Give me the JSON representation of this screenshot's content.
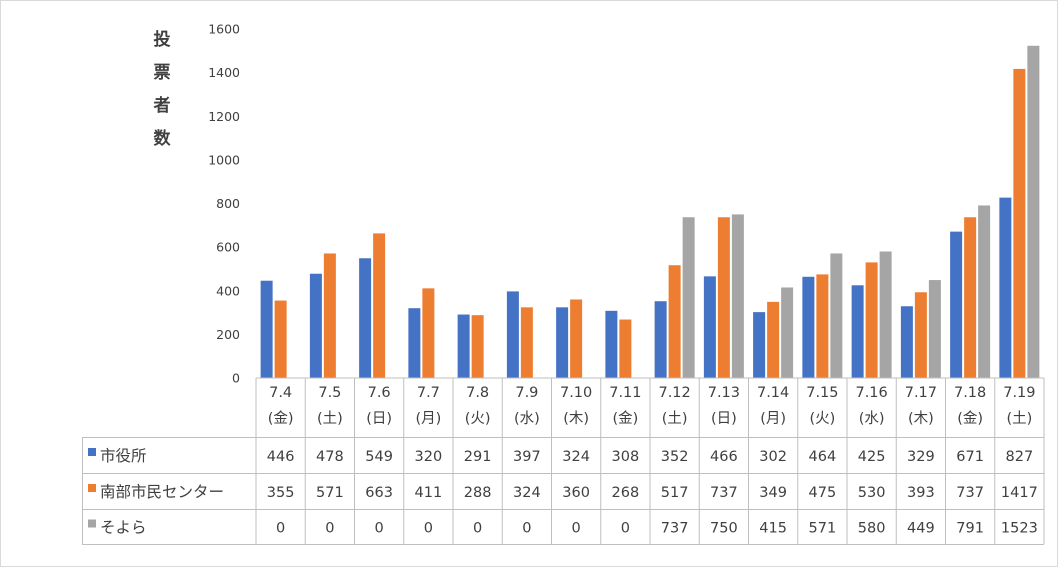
{
  "chart_data": {
    "type": "bar",
    "ylabel": "投票者数",
    "ylabel_chars": [
      "投",
      "票",
      "者",
      "数"
    ],
    "ylim": [
      0,
      1600
    ],
    "yticks": [
      0,
      200,
      400,
      600,
      800,
      1000,
      1200,
      1400,
      1600
    ],
    "grid": false,
    "legend": "table-bottom",
    "categories": [
      "7.4",
      "7.5",
      "7.6",
      "7.7",
      "7.8",
      "7.9",
      "7.10",
      "7.11",
      "7.12",
      "7.13",
      "7.14",
      "7.15",
      "7.16",
      "7.17",
      "7.18",
      "7.19"
    ],
    "weekdays": [
      "(金)",
      "(土)",
      "(日)",
      "(月)",
      "(火)",
      "(水)",
      "(木)",
      "(金)",
      "(土)",
      "(日)",
      "(月)",
      "(火)",
      "(水)",
      "(木)",
      "(金)",
      "(土)"
    ],
    "series": [
      {
        "name": "市役所",
        "color": "#4472C4",
        "values": [
          446,
          478,
          549,
          320,
          291,
          397,
          324,
          308,
          352,
          466,
          302,
          464,
          425,
          329,
          671,
          827
        ]
      },
      {
        "name": "南部市民センター",
        "color": "#ED7D31",
        "values": [
          355,
          571,
          663,
          411,
          288,
          324,
          360,
          268,
          517,
          737,
          349,
          475,
          530,
          393,
          737,
          1417
        ]
      },
      {
        "name": "そよら",
        "color": "#A5A5A5",
        "values": [
          0,
          0,
          0,
          0,
          0,
          0,
          0,
          0,
          737,
          750,
          415,
          571,
          580,
          449,
          791,
          1523
        ]
      }
    ]
  }
}
